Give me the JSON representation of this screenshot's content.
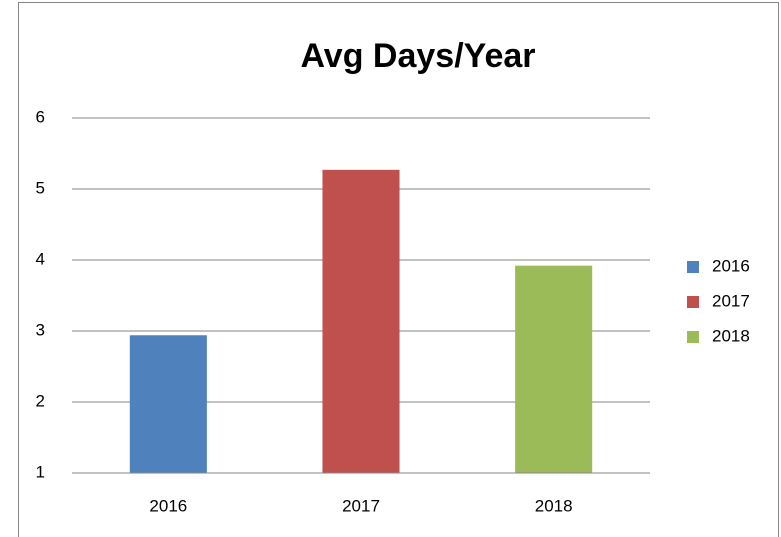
{
  "chart_data": {
    "type": "bar",
    "title": "Avg Days/Year",
    "categories": [
      "2016",
      "2017",
      "2018"
    ],
    "values": [
      2.94,
      5.27,
      3.92
    ],
    "colors": [
      "#4f81bd",
      "#c0504d",
      "#9bbb59"
    ],
    "ylim": [
      1,
      6
    ],
    "yticks": [
      1,
      2,
      3,
      4,
      5,
      6
    ],
    "grid": true,
    "legend": "right"
  }
}
